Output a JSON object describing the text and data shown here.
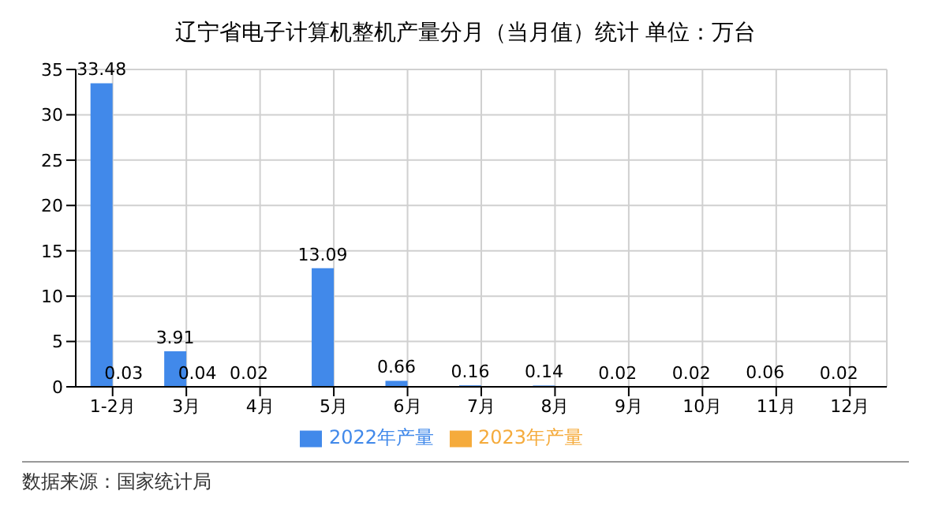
{
  "chart_data": {
    "type": "bar",
    "title": "辽宁省电子计算机整机产量分月（当月值）统计 单位：万台",
    "categories": [
      "1-2月",
      "3月",
      "4月",
      "5月",
      "6月",
      "7月",
      "8月",
      "9月",
      "10月",
      "11月",
      "12月"
    ],
    "series": [
      {
        "name": "2022年产量",
        "color": "#4189ea",
        "values": [
          33.48,
          3.91,
          0.02,
          13.09,
          0.66,
          0.16,
          0.14,
          0.02,
          0.02,
          0.06,
          0.02
        ]
      },
      {
        "name": "2023年产量",
        "color": "#f5ab3c",
        "values": [
          0.03,
          0.04,
          null,
          null,
          null,
          null,
          null,
          null,
          null,
          null,
          null
        ]
      }
    ],
    "ylim": [
      0,
      35
    ],
    "yticks": [
      0,
      5,
      10,
      15,
      20,
      25,
      30,
      35
    ],
    "grid": true,
    "legend": "bottom",
    "data_labels": true,
    "annotations": [
      "数据来源：国家统计局"
    ]
  }
}
